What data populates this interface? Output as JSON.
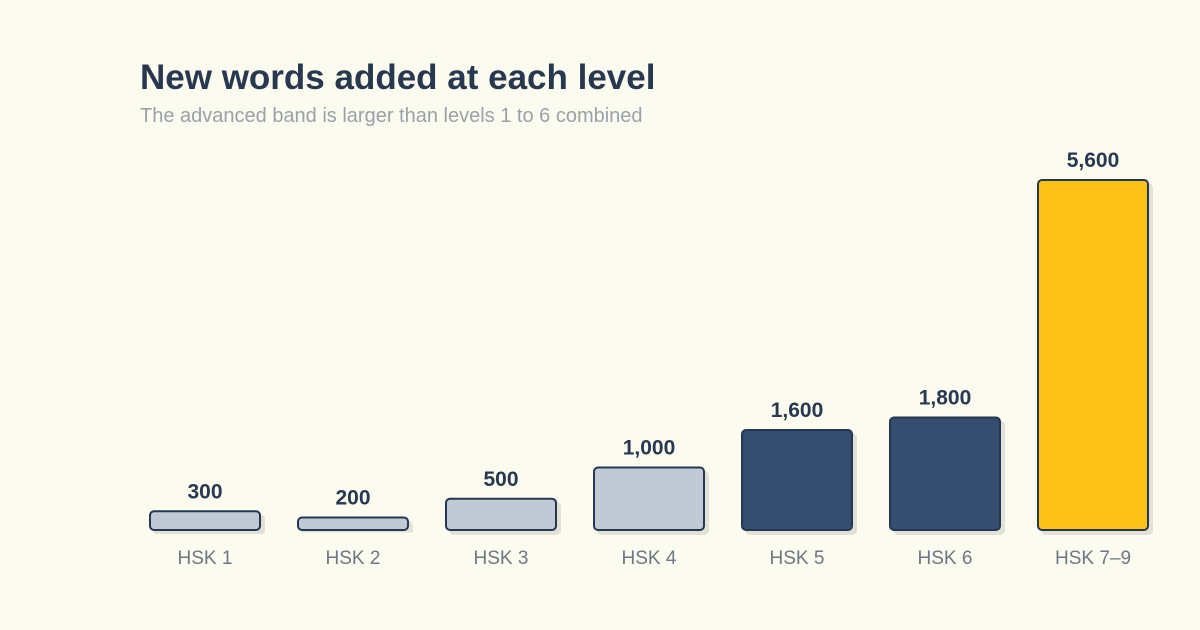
{
  "chart_data": {
    "type": "bar",
    "title": "New words added at each level",
    "subtitle": "The advanced band is larger than levels 1 to 6 combined",
    "categories": [
      "HSK 1",
      "HSK 2",
      "HSK 3",
      "HSK 4",
      "HSK 5",
      "HSK 6",
      "HSK 7–9"
    ],
    "values": [
      300,
      200,
      500,
      1000,
      1600,
      1800,
      5600
    ],
    "value_labels": [
      "300",
      "200",
      "500",
      "1,000",
      "1,600",
      "1,800",
      "5,600"
    ],
    "bar_colors": [
      "#c0cad6",
      "#c0cad6",
      "#c0cad6",
      "#c0cad6",
      "#344e6e",
      "#344e6e",
      "#fcc212"
    ],
    "outline_color": "#27384f",
    "ylim": [
      0,
      5600
    ],
    "grid": false,
    "legend": "none"
  }
}
